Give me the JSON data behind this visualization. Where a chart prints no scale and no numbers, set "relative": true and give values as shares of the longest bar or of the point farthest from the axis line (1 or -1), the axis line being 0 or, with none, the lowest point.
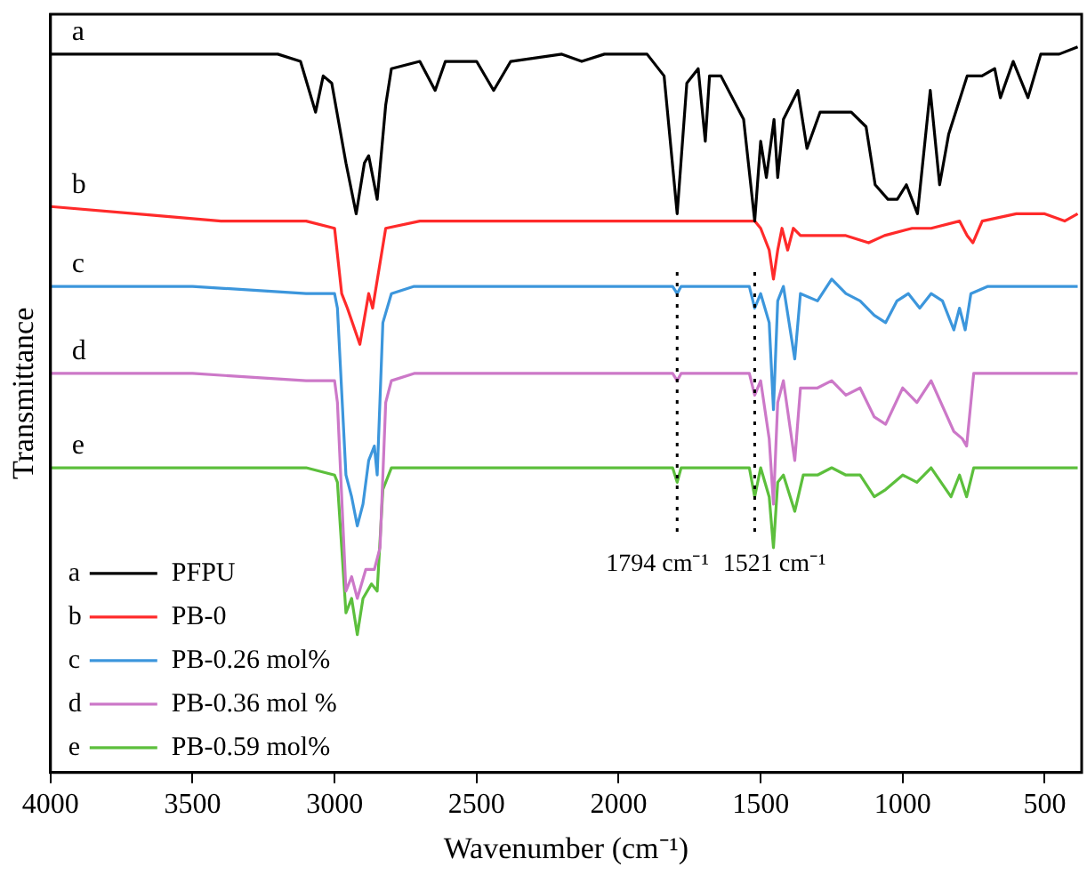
{
  "chart_data": {
    "type": "line",
    "xlabel": "Wavenumber (cm⁻¹)",
    "ylabel": "Transmittance",
    "relative": true,
    "xlim": [
      4000,
      370
    ],
    "xticks": [
      4000,
      3500,
      3000,
      2500,
      2000,
      1500,
      1000,
      500
    ],
    "grid": false,
    "legend": "bottom left",
    "marker": "none",
    "line_style": "solid",
    "annotations": [
      "a",
      "b",
      "c",
      "d",
      "e"
    ],
    "ref_lines": [
      {
        "axis": "x",
        "value": 1794,
        "label": "1794 cm⁻¹",
        "color": "#000000",
        "line_style": "dotted"
      },
      {
        "axis": "x",
        "value": 1521,
        "label": "1521 cm⁻¹",
        "color": "#000000",
        "line_style": "dotted"
      }
    ],
    "series": [
      {
        "name": "PFPU",
        "color": "#000000",
        "x": [
          4000,
          3500,
          3200,
          3120,
          3067,
          3040,
          3010,
          2960,
          2924,
          2895,
          2880,
          2850,
          2820,
          2800,
          2700,
          2646,
          2610,
          2500,
          2440,
          2380,
          2200,
          2130,
          2050,
          1900,
          1840,
          1794,
          1760,
          1720,
          1695,
          1680,
          1640,
          1560,
          1521,
          1500,
          1480,
          1453,
          1440,
          1420,
          1369,
          1337,
          1291,
          1246,
          1181,
          1129,
          1097,
          1052,
          1019,
          987,
          948,
          903,
          870,
          838,
          773,
          721,
          676,
          656,
          611,
          559,
          514,
          449,
          384
        ],
        "values": [
          0.99,
          0.99,
          0.99,
          0.98,
          0.91,
          0.96,
          0.95,
          0.84,
          0.77,
          0.84,
          0.85,
          0.79,
          0.92,
          0.97,
          0.98,
          0.94,
          0.98,
          0.98,
          0.94,
          0.98,
          0.99,
          0.98,
          0.99,
          0.99,
          0.96,
          0.77,
          0.95,
          0.97,
          0.87,
          0.96,
          0.96,
          0.9,
          0.76,
          0.87,
          0.82,
          0.9,
          0.82,
          0.9,
          0.94,
          0.86,
          0.91,
          0.91,
          0.91,
          0.89,
          0.81,
          0.79,
          0.79,
          0.81,
          0.77,
          0.94,
          0.81,
          0.88,
          0.96,
          0.96,
          0.97,
          0.93,
          0.98,
          0.93,
          0.99,
          0.99,
          1
        ]
      },
      {
        "name": "PB-0",
        "color": "#ff2a2a",
        "x": [
          4000,
          3700,
          3400,
          3100,
          3000,
          2975,
          2955,
          2911,
          2880,
          2866,
          2820,
          2700,
          2400,
          2000,
          1800,
          1794,
          1600,
          1521,
          1500,
          1470,
          1455,
          1440,
          1425,
          1405,
          1385,
          1360,
          1300,
          1250,
          1200,
          1120,
          1064,
          967,
          900,
          800,
          773,
          753,
          720,
          600,
          500,
          430,
          384
        ],
        "values": [
          0.78,
          0.77,
          0.76,
          0.76,
          0.75,
          0.66,
          0.64,
          0.59,
          0.66,
          0.64,
          0.75,
          0.76,
          0.76,
          0.76,
          0.76,
          0.76,
          0.76,
          0.76,
          0.75,
          0.72,
          0.68,
          0.72,
          0.75,
          0.72,
          0.75,
          0.74,
          0.74,
          0.74,
          0.74,
          0.73,
          0.74,
          0.75,
          0.75,
          0.76,
          0.74,
          0.73,
          0.76,
          0.77,
          0.77,
          0.76,
          0.77
        ]
      },
      {
        "name": "PB-0.26 mol%",
        "color": "#3c96dc",
        "x": [
          4000,
          3500,
          3100,
          3000,
          2990,
          2960,
          2940,
          2920,
          2900,
          2880,
          2860,
          2850,
          2830,
          2800,
          2720,
          2400,
          2000,
          1810,
          1794,
          1780,
          1600,
          1540,
          1521,
          1500,
          1470,
          1455,
          1440,
          1420,
          1380,
          1360,
          1300,
          1250,
          1200,
          1150,
          1100,
          1060,
          1020,
          980,
          940,
          900,
          860,
          820,
          800,
          780,
          760,
          700,
          500,
          384
        ],
        "values": [
          0.67,
          0.67,
          0.66,
          0.66,
          0.64,
          0.41,
          0.38,
          0.34,
          0.37,
          0.43,
          0.45,
          0.41,
          0.62,
          0.66,
          0.67,
          0.67,
          0.67,
          0.67,
          0.66,
          0.67,
          0.67,
          0.67,
          0.64,
          0.66,
          0.62,
          0.5,
          0.65,
          0.67,
          0.57,
          0.66,
          0.65,
          0.68,
          0.66,
          0.65,
          0.63,
          0.62,
          0.65,
          0.66,
          0.64,
          0.66,
          0.65,
          0.61,
          0.64,
          0.61,
          0.66,
          0.67,
          0.67,
          0.67
        ]
      },
      {
        "name": "PB-0.36 mol %",
        "color": "#cc78c8",
        "x": [
          4000,
          3500,
          3100,
          3000,
          2990,
          2960,
          2940,
          2920,
          2890,
          2860,
          2840,
          2820,
          2800,
          2720,
          2400,
          2000,
          1810,
          1794,
          1780,
          1600,
          1540,
          1521,
          1500,
          1470,
          1455,
          1440,
          1420,
          1380,
          1360,
          1300,
          1250,
          1200,
          1150,
          1100,
          1060,
          1000,
          950,
          900,
          820,
          790,
          775,
          750,
          700,
          500,
          384
        ],
        "values": [
          0.55,
          0.55,
          0.54,
          0.54,
          0.51,
          0.25,
          0.27,
          0.24,
          0.28,
          0.28,
          0.31,
          0.51,
          0.54,
          0.55,
          0.55,
          0.55,
          0.55,
          0.54,
          0.55,
          0.55,
          0.55,
          0.52,
          0.54,
          0.46,
          0.37,
          0.51,
          0.54,
          0.43,
          0.53,
          0.53,
          0.54,
          0.52,
          0.53,
          0.49,
          0.48,
          0.53,
          0.51,
          0.54,
          0.47,
          0.46,
          0.45,
          0.55,
          0.55,
          0.55,
          0.55
        ]
      },
      {
        "name": "PB-0.59 mol%",
        "color": "#5cbf3c",
        "x": [
          4000,
          3500,
          3100,
          3000,
          2990,
          2960,
          2940,
          2920,
          2900,
          2870,
          2850,
          2830,
          2800,
          2720,
          2400,
          2000,
          1810,
          1794,
          1780,
          1600,
          1540,
          1521,
          1500,
          1470,
          1455,
          1440,
          1420,
          1380,
          1350,
          1300,
          1250,
          1200,
          1150,
          1100,
          1060,
          1000,
          950,
          900,
          830,
          800,
          775,
          750,
          500,
          384
        ],
        "values": [
          0.42,
          0.42,
          0.42,
          0.41,
          0.4,
          0.22,
          0.24,
          0.19,
          0.24,
          0.26,
          0.25,
          0.39,
          0.42,
          0.42,
          0.42,
          0.42,
          0.42,
          0.4,
          0.42,
          0.42,
          0.42,
          0.38,
          0.42,
          0.38,
          0.31,
          0.4,
          0.41,
          0.36,
          0.41,
          0.41,
          0.42,
          0.41,
          0.41,
          0.38,
          0.39,
          0.41,
          0.4,
          0.42,
          0.38,
          0.41,
          0.38,
          0.42,
          0.42,
          0.42
        ]
      }
    ]
  }
}
